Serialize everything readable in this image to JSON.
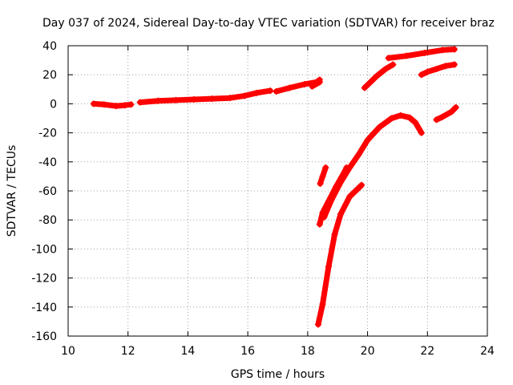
{
  "chart_data": {
    "type": "scatter",
    "title": "Day 037 of 2024, Sidereal Day-to-day VTEC variation (SDTVAR) for receiver braz",
    "xlabel": "GPS time / hours",
    "ylabel": "SDTVAR / TECUs",
    "xlim": [
      10,
      24
    ],
    "ylim": [
      -160,
      40
    ],
    "xticks": [
      10,
      12,
      14,
      16,
      18,
      20,
      22,
      24
    ],
    "yticks": [
      40,
      20,
      0,
      -20,
      -40,
      -60,
      -80,
      -100,
      -120,
      -140,
      -160
    ],
    "grid": true,
    "marker": "plus",
    "color": "#ff0000",
    "series": [
      {
        "points": [
          [
            10.85,
            0.0
          ],
          [
            11.2,
            -0.5
          ],
          [
            11.6,
            -1.5
          ],
          [
            11.9,
            -1.0
          ],
          [
            12.1,
            -0.5
          ]
        ]
      },
      {
        "points": [
          [
            12.4,
            1.0
          ],
          [
            13.0,
            2.0
          ],
          [
            13.6,
            2.5
          ],
          [
            14.2,
            3.0
          ],
          [
            14.8,
            3.5
          ],
          [
            15.4,
            4.0
          ],
          [
            15.9,
            5.5
          ],
          [
            16.3,
            7.5
          ],
          [
            16.75,
            9.0
          ]
        ]
      },
      {
        "points": [
          [
            16.95,
            8.5
          ],
          [
            17.4,
            11.0
          ],
          [
            17.9,
            13.5
          ],
          [
            18.3,
            15.0
          ],
          [
            18.4,
            16.5
          ]
        ]
      },
      {
        "points": [
          [
            18.15,
            12.0
          ],
          [
            18.4,
            15.0
          ]
        ]
      },
      {
        "points": [
          [
            18.42,
            -55.0
          ],
          [
            18.5,
            -50.0
          ],
          [
            18.6,
            -44.0
          ]
        ]
      },
      {
        "points": [
          [
            18.4,
            -83.0
          ],
          [
            18.5,
            -75.0
          ],
          [
            18.7,
            -67.0
          ],
          [
            18.95,
            -57.0
          ],
          [
            19.2,
            -48.0
          ],
          [
            19.3,
            -44.0
          ]
        ]
      },
      {
        "points": [
          [
            18.55,
            -78.0
          ],
          [
            18.8,
            -66.0
          ],
          [
            19.1,
            -54.0
          ],
          [
            19.4,
            -44.0
          ],
          [
            19.7,
            -35.0
          ],
          [
            20.0,
            -25.0
          ],
          [
            20.4,
            -16.0
          ],
          [
            20.8,
            -10.0
          ],
          [
            21.1,
            -8.0
          ],
          [
            21.4,
            -9.5
          ],
          [
            21.6,
            -13.0
          ],
          [
            21.8,
            -20.0
          ]
        ]
      },
      {
        "points": [
          [
            18.35,
            -152.0
          ],
          [
            18.5,
            -138.0
          ],
          [
            18.7,
            -112.0
          ],
          [
            18.9,
            -90.0
          ],
          [
            19.1,
            -76.0
          ],
          [
            19.4,
            -64.0
          ],
          [
            19.8,
            -56.0
          ]
        ]
      },
      {
        "points": [
          [
            19.9,
            11.0
          ],
          [
            20.3,
            19.0
          ],
          [
            20.6,
            24.0
          ],
          [
            20.85,
            27.0
          ]
        ]
      },
      {
        "points": [
          [
            20.7,
            31.5
          ],
          [
            21.3,
            33.0
          ],
          [
            21.9,
            35.0
          ],
          [
            22.5,
            37.0
          ],
          [
            22.9,
            37.5
          ]
        ]
      },
      {
        "points": [
          [
            21.8,
            20.0
          ],
          [
            22.0,
            22.0
          ],
          [
            22.3,
            24.0
          ],
          [
            22.6,
            26.0
          ],
          [
            22.9,
            27.0
          ]
        ]
      },
      {
        "points": [
          [
            22.3,
            -11.0
          ],
          [
            22.5,
            -9.0
          ],
          [
            22.8,
            -5.5
          ],
          [
            22.95,
            -2.5
          ]
        ]
      }
    ]
  }
}
